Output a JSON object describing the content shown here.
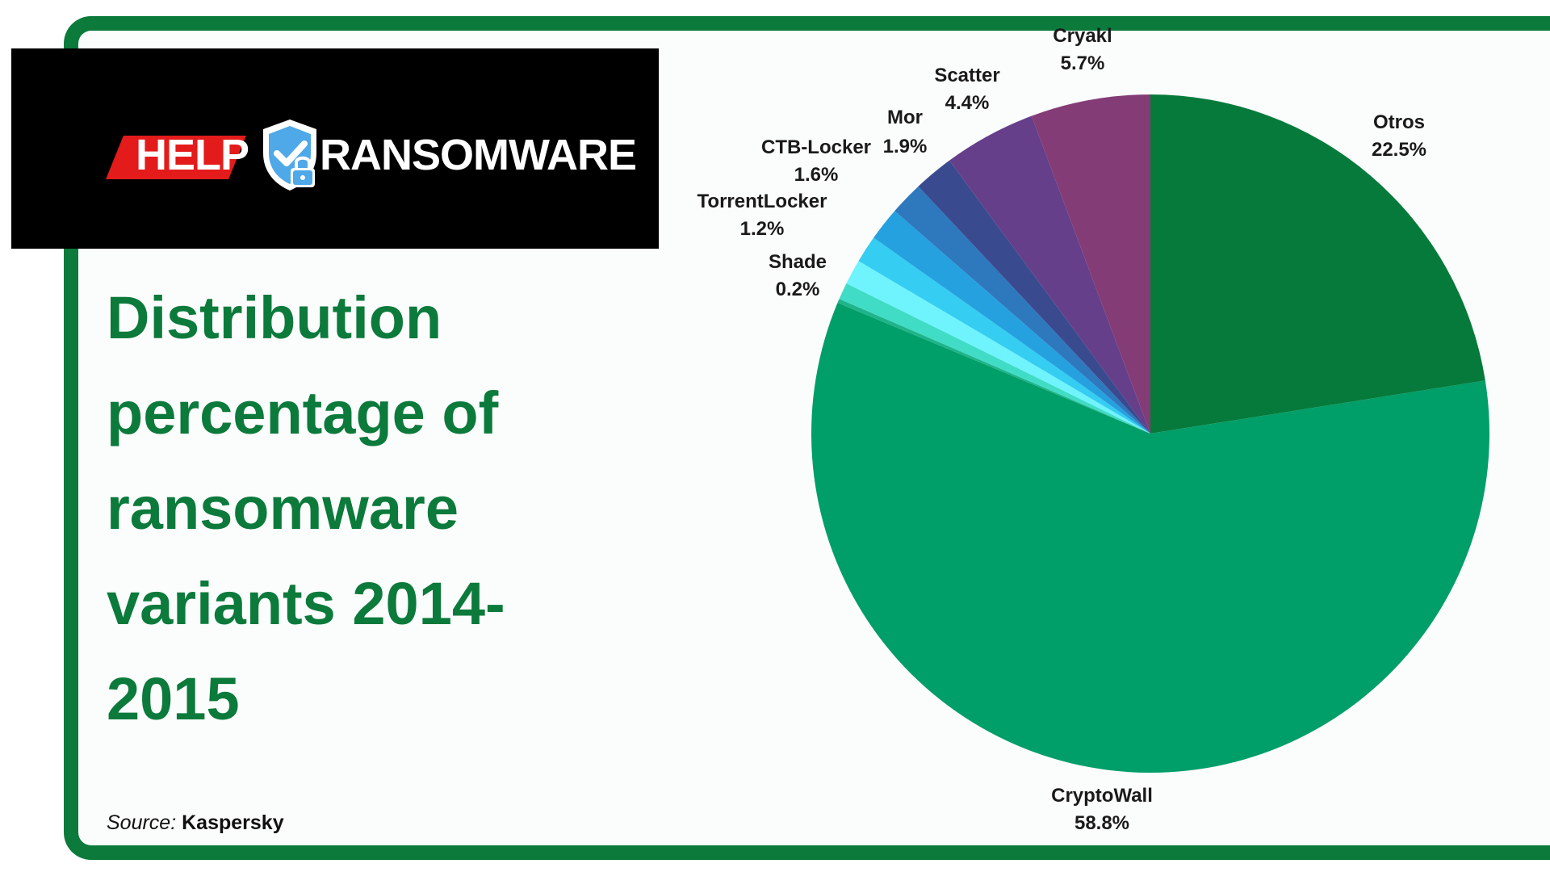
{
  "brand": {
    "logo_left": "HELP",
    "logo_right": "RANSOMWARE",
    "logo_red": "#e31b1b",
    "shield_color": "#4fa8e8",
    "accent_green": "#0b7a3b"
  },
  "title": {
    "line1": "Distribution",
    "line2": "percentage of",
    "line3": "ransomware",
    "line4": "variants 2014-",
    "line5": "2015"
  },
  "source": {
    "label": "Source:",
    "value": "Kaspersky"
  },
  "chart_data": {
    "type": "pie",
    "title": "Distribution percentage of ransomware variants 2014-2015",
    "slices": [
      {
        "label": "Otros",
        "pct_label": "22.5%",
        "value": 22.5,
        "color": "#067a3a"
      },
      {
        "label": "CryptoWall",
        "pct_label": "58.8%",
        "value": 58.8,
        "color": "#009e68"
      },
      {
        "label": "Shade",
        "pct_label": "0.2%",
        "value": 0.2,
        "color": "#1fb48a"
      },
      {
        "label": "",
        "pct_label": "",
        "value": 0.8,
        "color": "#40dcc6"
      },
      {
        "label": "TorrentLocker",
        "pct_label": "1.2%",
        "value": 1.2,
        "color": "#6ff4fd"
      },
      {
        "label": "",
        "pct_label": "",
        "value": 1.3,
        "color": "#35cdf2"
      },
      {
        "label": "CTB-Locker",
        "pct_label": "1.6%",
        "value": 1.6,
        "color": "#26a1df"
      },
      {
        "label": "",
        "pct_label": "",
        "value": 1.6,
        "color": "#2e78be"
      },
      {
        "label": "Mor",
        "pct_label": "1.9%",
        "value": 1.9,
        "color": "#3a4a8f"
      },
      {
        "label": "Scatter",
        "pct_label": "4.4%",
        "value": 4.4,
        "color": "#653f8a"
      },
      {
        "label": "Cryakl",
        "pct_label": "5.7%",
        "value": 5.7,
        "color": "#843c77"
      }
    ]
  }
}
